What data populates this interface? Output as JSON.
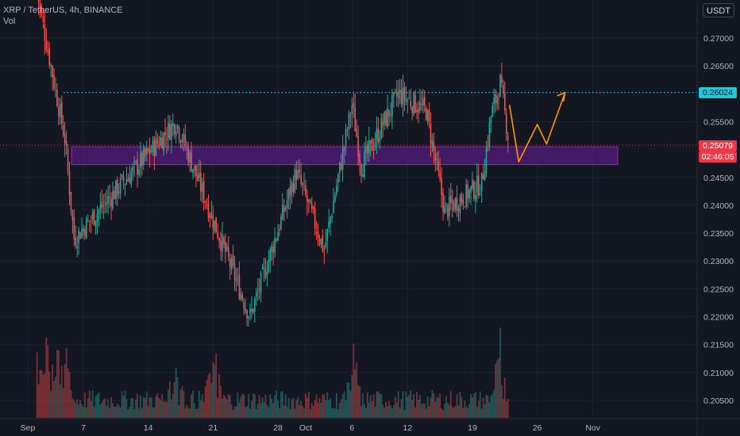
{
  "legend": {
    "symbol_line": "XRP / TetherUS, 4h, BINANCE",
    "volume_label": "Vol"
  },
  "currency_button": "USDT",
  "price_scale": {
    "ticks": [
      "0.27000",
      "0.26500",
      "0.25500",
      "0.24500",
      "0.24000",
      "0.23500",
      "0.23000",
      "0.22500",
      "0.22000",
      "0.21500",
      "0.21000",
      "0.20500"
    ],
    "level_label": "0.26024",
    "last_price_label": "0.25079",
    "countdown_label": "02:46:05"
  },
  "time_scale": {
    "ticks": [
      "Sep",
      "7",
      "14",
      "21",
      "28",
      "Oct",
      "6",
      "12",
      "19",
      "26",
      "Nov"
    ]
  },
  "colors": {
    "background": "#131722",
    "up": "#26a69a",
    "down": "#ef5350",
    "level_line": "#26c6da",
    "zone_fill": "#6a1b9a",
    "projection": "#ff9800",
    "last_price": "#f23645"
  },
  "chart_data": {
    "type": "candlestick",
    "symbol": "XRP / TetherUS",
    "interval": "4h",
    "exchange": "BINANCE",
    "price_range": [
      0.2005,
      0.2775
    ],
    "key_levels": {
      "resistance": 0.26024,
      "last_price": 0.25079,
      "zone": [
        0.2473,
        0.2505
      ]
    },
    "swing_points": [
      {
        "date": "Sep 2",
        "price": 0.278
      },
      {
        "date": "Sep 5",
        "price": 0.252
      },
      {
        "date": "Sep 6",
        "price": 0.234
      },
      {
        "date": "Sep 17",
        "price": 0.255
      },
      {
        "date": "Sep 22",
        "price": 0.233
      },
      {
        "date": "Sep 25",
        "price": 0.22
      },
      {
        "date": "Sep 30",
        "price": 0.246
      },
      {
        "date": "Oct 3",
        "price": 0.232
      },
      {
        "date": "Oct 6",
        "price": 0.258
      },
      {
        "date": "Oct 7",
        "price": 0.247
      },
      {
        "date": "Oct 11",
        "price": 0.26
      },
      {
        "date": "Oct 14",
        "price": 0.257
      },
      {
        "date": "Oct 16",
        "price": 0.239
      },
      {
        "date": "Oct 20",
        "price": 0.244
      },
      {
        "date": "Oct 21",
        "price": 0.256
      },
      {
        "date": "Oct 22",
        "price": 0.262
      },
      {
        "date": "Oct 23",
        "price": 0.2508
      }
    ],
    "projection_path": [
      {
        "date": "Oct 23",
        "price": 0.258
      },
      {
        "date": "Oct 24",
        "price": 0.2478
      },
      {
        "date": "Oct 26",
        "price": 0.2545
      },
      {
        "date": "Oct 27",
        "price": 0.251
      },
      {
        "date": "Oct 29",
        "price": 0.2602
      }
    ],
    "volume_peaks_dates": [
      "Sep 2",
      "Sep 3",
      "Sep 4",
      "Sep 5",
      "Sep 17",
      "Sep 21",
      "Oct 6",
      "Oct 22"
    ]
  }
}
